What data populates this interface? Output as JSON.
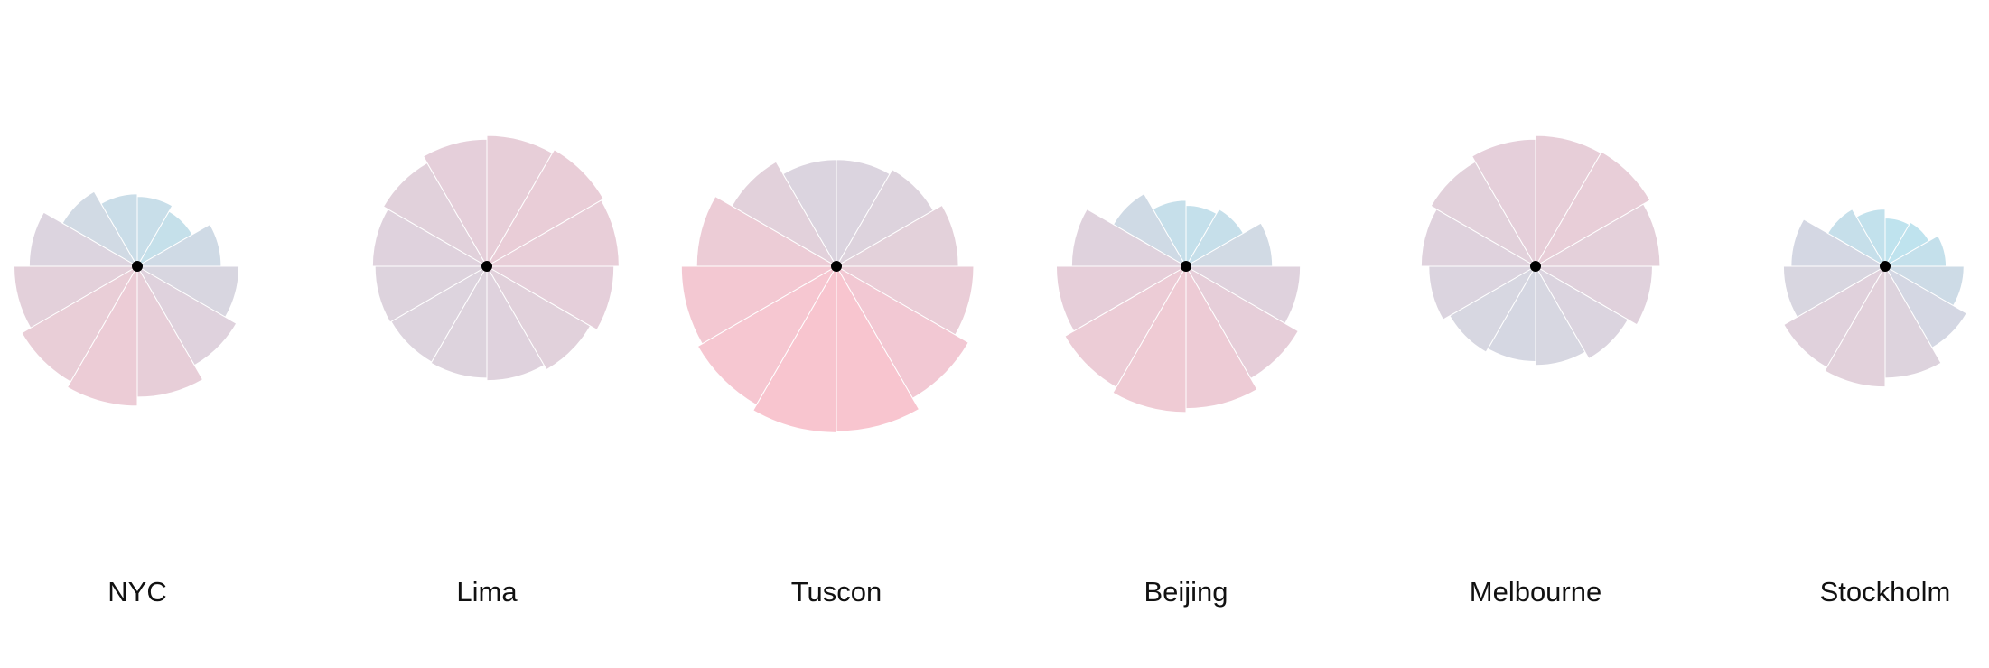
{
  "chart_data": {
    "type": "polar-area",
    "rlim": [
      0,
      140
    ],
    "color_domain": [
      40,
      130
    ],
    "color_range": [
      "#a9d9e8",
      "#f6b2bf"
    ],
    "series": [
      {
        "name": "NYC",
        "values": [
          55,
          50,
          66,
          80,
          90,
          103,
          110,
          105,
          97,
          85,
          68,
          57
        ]
      },
      {
        "name": "Lima",
        "values": [
          103,
          106,
          104,
          100,
          94,
          90,
          88,
          87,
          88,
          90,
          94,
          100
        ]
      },
      {
        "name": "Tuscon",
        "values": [
          84,
          88,
          96,
          108,
          120,
          130,
          131,
          126,
          122,
          110,
          95,
          84
        ]
      },
      {
        "name": "Beijing",
        "values": [
          48,
          52,
          68,
          90,
          102,
          112,
          115,
          110,
          102,
          90,
          66,
          52
        ]
      },
      {
        "name": "Melbourne",
        "values": [
          103,
          104,
          98,
          92,
          84,
          78,
          75,
          78,
          84,
          90,
          95,
          100
        ]
      },
      {
        "name": "Stockholm",
        "values": [
          38,
          40,
          48,
          62,
          74,
          88,
          95,
          92,
          80,
          74,
          52,
          45
        ]
      }
    ]
  }
}
